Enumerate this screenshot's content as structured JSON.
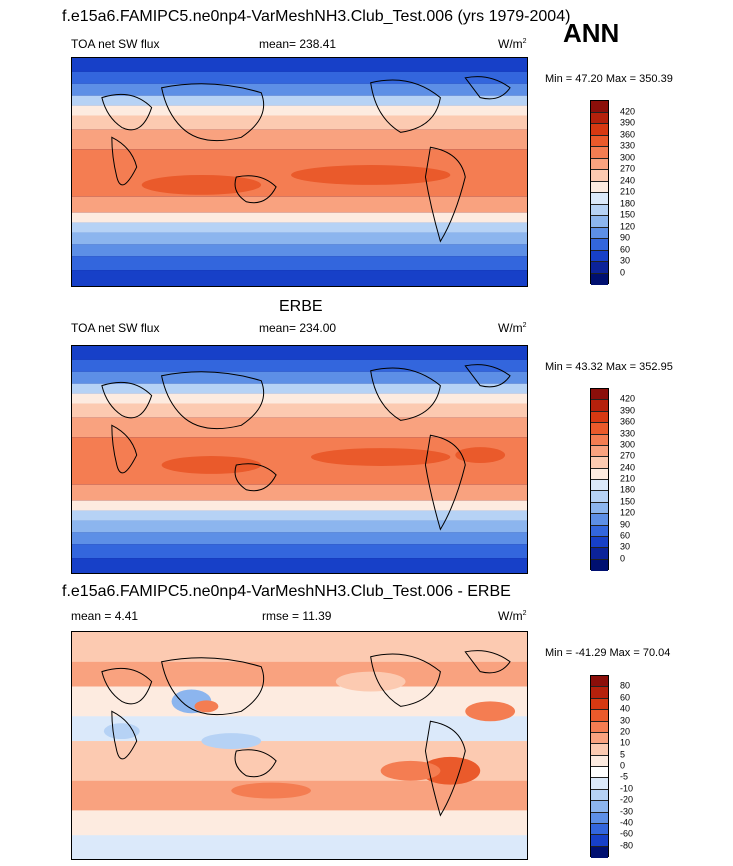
{
  "page_title": "f.e15a6.FAMIPC5.ne0np4-VarMeshNH3.Club_Test.006 (yrs 1979-2004)",
  "season": "ANN",
  "panels": [
    {
      "variable": "TOA net SW flux",
      "stat_label": "mean= 238.41",
      "units": "W/m",
      "units_sup": "2",
      "minmax": "Min =  47.20 Max = 350.39",
      "levels": [
        "420",
        "390",
        "360",
        "330",
        "300",
        "270",
        "240",
        "210",
        "180",
        "150",
        "120",
        "90",
        "60",
        "30",
        "0"
      ]
    },
    {
      "panel_title": "ERBE",
      "variable": "TOA net SW flux",
      "stat_label": "mean= 234.00",
      "units": "W/m",
      "units_sup": "2",
      "minmax": "Min =  43.32 Max = 352.95",
      "levels": [
        "420",
        "390",
        "360",
        "330",
        "300",
        "270",
        "240",
        "210",
        "180",
        "150",
        "120",
        "90",
        "60",
        "30",
        "0"
      ]
    },
    {
      "panel_title": "f.e15a6.FAMIPC5.ne0np4-VarMeshNH3.Club_Test.006 - ERBE",
      "stat_label": "mean =   4.41",
      "stat2_label": "rmse =  11.39",
      "units": "W/m",
      "units_sup": "2",
      "minmax": "Min = -41.29 Max =  70.04",
      "levels": [
        "80",
        "60",
        "40",
        "30",
        "20",
        "10",
        "5",
        "0",
        "-5",
        "-10",
        "-20",
        "-30",
        "-40",
        "-60",
        "-80"
      ]
    }
  ],
  "colors": {
    "colorbar_abs": [
      "#8b0f0a",
      "#b5210c",
      "#d73912",
      "#ea5a2b",
      "#f47d52",
      "#f9a27f",
      "#fccab1",
      "#fdebe0",
      "#dbe9fa",
      "#b6d2f5",
      "#8cb5ee",
      "#5d8fe6",
      "#3366dd",
      "#1740c8",
      "#0c2399",
      "#001070"
    ],
    "colorbar_diff": [
      "#8b0f0a",
      "#b5210c",
      "#d73912",
      "#ea5a2b",
      "#f47d52",
      "#f9a27f",
      "#fccab1",
      "#fdebe0",
      "#ffffff",
      "#dbe9fa",
      "#b6d2f5",
      "#8cb5ee",
      "#5d8fe6",
      "#3366dd",
      "#1740c8",
      "#001070"
    ]
  }
}
